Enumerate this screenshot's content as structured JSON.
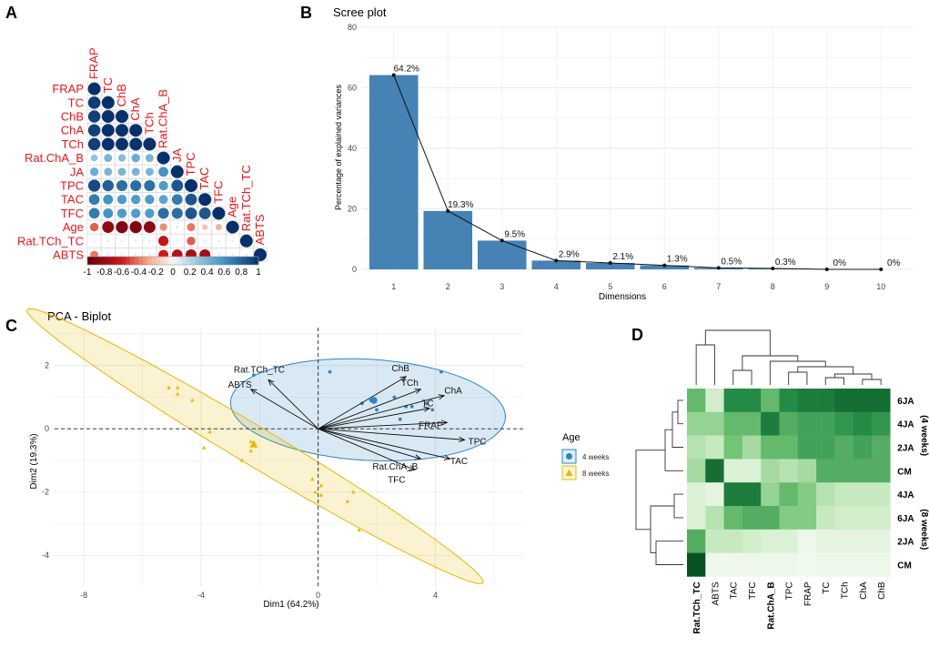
{
  "panel_letters": [
    "A",
    "B",
    "C",
    "D"
  ],
  "colors": {
    "corr_pos": "#08306b",
    "corr_neg": "#67000d",
    "bar": "#4682b4",
    "group_4w": "#2e86c1",
    "group_8w": "#e6b800",
    "label_red": "#e8151b",
    "heat_low": "#f7fcf5",
    "heat_high": "#00441b"
  },
  "chart_data": [
    {
      "type": "heatmap",
      "panel": "A",
      "title": "",
      "variables": [
        "FRAP",
        "TC",
        "ChB",
        "ChA",
        "TCh",
        "Rat.ChA_B",
        "JA",
        "TPC",
        "TAC",
        "TFC",
        "Age",
        "Rat.TCh_TC",
        "ABTS"
      ],
      "lower_triangle": [
        [
          1
        ],
        [
          0.95,
          1
        ],
        [
          0.93,
          0.99,
          1
        ],
        [
          0.93,
          0.99,
          0.99,
          1
        ],
        [
          0.94,
          0.99,
          0.99,
          0.99,
          1
        ],
        [
          0.3,
          0.4,
          0.35,
          0.45,
          0.4,
          1
        ],
        [
          0.45,
          0.4,
          0.4,
          0.4,
          0.4,
          0.6,
          1
        ],
        [
          0.9,
          0.8,
          0.75,
          0.75,
          0.75,
          0.55,
          0.85,
          1
        ],
        [
          0.7,
          0.6,
          0.55,
          0.55,
          0.55,
          0.5,
          0.7,
          0.85,
          1
        ],
        [
          0.7,
          0.6,
          0.55,
          0.55,
          0.55,
          0.75,
          0.75,
          0.85,
          0.85,
          1
        ],
        [
          -0.45,
          -0.85,
          -0.9,
          -0.9,
          -0.85,
          -0.35,
          0.05,
          -0.4,
          -0.2,
          -0.25,
          1
        ],
        [
          0.05,
          0.05,
          0.05,
          0.05,
          0.05,
          -0.65,
          0.05,
          -0.45,
          0.05,
          0.05,
          0.05,
          1
        ],
        [
          -0.4,
          0.05,
          0.05,
          0.05,
          0.05,
          -0.6,
          -0.7,
          -0.75,
          -0.75,
          0.05,
          0.05,
          0.05,
          1
        ]
      ],
      "colorbar_ticks": [
        "-1",
        "-0.8",
        "-0.6",
        "-0.4",
        "-0.2",
        "0",
        "0.2",
        "0.4",
        "0.6",
        "0.8",
        "1"
      ]
    },
    {
      "type": "bar",
      "panel": "B",
      "title": "Scree plot",
      "xlabel": "Dimensions",
      "ylabel": "Percentage of explained variances",
      "categories": [
        "1",
        "2",
        "3",
        "4",
        "5",
        "6",
        "7",
        "8",
        "9",
        "10"
      ],
      "values": [
        64.2,
        19.3,
        9.5,
        2.9,
        2.1,
        1.3,
        0.5,
        0.3,
        0,
        0
      ],
      "data_labels": [
        "64.2%",
        "19.3%",
        "9.5%",
        "2.9%",
        "2.1%",
        "1.3%",
        "0.5%",
        "0.3%",
        "0%",
        "0%"
      ],
      "ylim": [
        0,
        80
      ],
      "yticks": [
        "0",
        "20",
        "40",
        "60",
        "80"
      ],
      "line_overlay": true
    },
    {
      "type": "scatter",
      "panel": "C",
      "title": "PCA - Biplot",
      "xlabel": "Dim1 (64.2%)",
      "ylabel": "Dim2 (19.3%)",
      "xlim": [
        -9,
        7
      ],
      "ylim": [
        -5,
        3.2
      ],
      "xticks": [
        "-8",
        "-4",
        "0",
        "4"
      ],
      "yticks": [
        "-4",
        "-2",
        "0",
        "2"
      ],
      "legend_title": "Age",
      "series": [
        {
          "name": "4 weeks",
          "points": [
            [
              0.4,
              1.8
            ],
            [
              -2.2,
              1.7
            ],
            [
              1.5,
              0.8
            ],
            [
              1.8,
              0.9
            ],
            [
              2.0,
              0.6
            ],
            [
              3.0,
              0.7
            ],
            [
              3.2,
              0.7
            ],
            [
              3.7,
              0.8
            ],
            [
              3.9,
              0.6
            ],
            [
              4.2,
              1.8
            ],
            [
              2.8,
              0.3
            ],
            [
              2.6,
              1.0
            ]
          ],
          "centroid": [
            1.9,
            0.9
          ]
        },
        {
          "name": "8 weeks",
          "points": [
            [
              -5.1,
              1.3
            ],
            [
              -4.8,
              1.1
            ],
            [
              -4.8,
              1.3
            ],
            [
              -4.3,
              0.9
            ],
            [
              -3.7,
              -0.1
            ],
            [
              -3.9,
              -0.6
            ],
            [
              -2.6,
              -1.0
            ],
            [
              -2.3,
              -0.4
            ],
            [
              -0.2,
              -1.6
            ],
            [
              -0.1,
              -2.0
            ],
            [
              0.1,
              -2.1
            ],
            [
              1.2,
              -2.0
            ],
            [
              1.0,
              -2.3
            ],
            [
              1.4,
              -3.2
            ],
            [
              0.1,
              -1.8
            ],
            [
              -2.3,
              -0.7
            ]
          ],
          "centroid": [
            -2.2,
            -0.5
          ]
        }
      ],
      "loadings": [
        {
          "label": "ChB",
          "x": 3.0,
          "y": 1.65
        },
        {
          "label": "TCh",
          "x": 3.5,
          "y": 1.25
        },
        {
          "label": "ChA",
          "x": 4.3,
          "y": 1.05
        },
        {
          "label": "TC",
          "x": 3.8,
          "y": 0.65
        },
        {
          "label": "FRAP",
          "x": 4.4,
          "y": 0.2
        },
        {
          "label": "TPC",
          "x": 5.0,
          "y": -0.35
        },
        {
          "label": "TAC",
          "x": 4.5,
          "y": -0.95
        },
        {
          "label": "Rat.ChA_B",
          "x": 3.5,
          "y": -0.95
        },
        {
          "label": "TFC",
          "x": 3.3,
          "y": -1.3
        },
        {
          "label": "Rat.TCh_TC",
          "x": -1.7,
          "y": 1.55
        },
        {
          "label": "ABTS",
          "x": -2.3,
          "y": 1.25
        }
      ]
    },
    {
      "type": "heatmap",
      "panel": "D",
      "rows": [
        "6JA",
        "4JA",
        "2JA",
        "CM",
        "4JA",
        "6JA",
        "2JA",
        "CM"
      ],
      "row_groups": [
        "(4 weeks)",
        "(8 weeks)"
      ],
      "columns": [
        "Rat.TCh_TC",
        "ABTS",
        "TAC",
        "TFC",
        "Rat.ChA_B",
        "TPC",
        "FRAP",
        "TC",
        "TCh",
        "ChA",
        "ChB"
      ],
      "values": [
        [
          0.55,
          0.2,
          0.75,
          0.75,
          0.55,
          0.75,
          0.8,
          0.8,
          0.85,
          0.85,
          0.85
        ],
        [
          0.4,
          0.4,
          0.55,
          0.55,
          0.8,
          0.6,
          0.65,
          0.65,
          0.7,
          0.75,
          0.7
        ],
        [
          0.3,
          0.25,
          0.5,
          0.35,
          0.55,
          0.55,
          0.65,
          0.65,
          0.6,
          0.65,
          0.6
        ],
        [
          0.35,
          0.85,
          0.15,
          0.15,
          0.35,
          0.3,
          0.35,
          0.6,
          0.6,
          0.6,
          0.6
        ],
        [
          0.15,
          0.1,
          0.8,
          0.8,
          0.4,
          0.55,
          0.45,
          0.3,
          0.25,
          0.25,
          0.25
        ],
        [
          0.15,
          0.3,
          0.55,
          0.6,
          0.6,
          0.45,
          0.45,
          0.25,
          0.2,
          0.2,
          0.2
        ],
        [
          0.6,
          0.25,
          0.25,
          0.2,
          0.15,
          0.15,
          0.05,
          0.1,
          0.1,
          0.1,
          0.1
        ],
        [
          0.95,
          0.05,
          0.05,
          0.05,
          0.05,
          0.05,
          0.03,
          0.05,
          0.05,
          0.05,
          0.05
        ]
      ]
    }
  ]
}
